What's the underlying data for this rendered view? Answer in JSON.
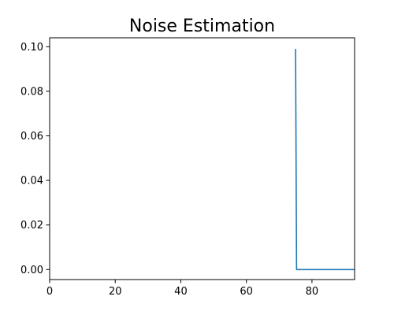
{
  "chart_data": {
    "type": "line",
    "title": "Noise Estimation",
    "xlabel": "",
    "ylabel": "",
    "xlim": [
      0,
      93
    ],
    "ylim": [
      -0.0045,
      0.104
    ],
    "xticks": [
      0,
      20,
      40,
      60,
      80
    ],
    "yticks": [
      0.0,
      0.02,
      0.04,
      0.06,
      0.08,
      0.1
    ],
    "xtick_labels": [
      "0",
      "20",
      "40",
      "60",
      "80"
    ],
    "ytick_labels": [
      "0.00",
      "0.02",
      "0.04",
      "0.06",
      "0.08",
      "0.10"
    ],
    "grid": false,
    "legend": "none",
    "series": [
      {
        "color": "#1f77b4",
        "x": [
          75,
          75.3,
          76,
          80,
          85,
          90,
          93
        ],
        "y": [
          0.099,
          0.0,
          0.0,
          0.0,
          0.0,
          0.0,
          0.0
        ]
      }
    ]
  }
}
